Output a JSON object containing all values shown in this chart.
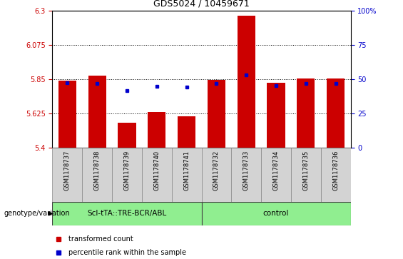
{
  "title": "GDS5024 / 10459671",
  "samples": [
    "GSM1178737",
    "GSM1178738",
    "GSM1178739",
    "GSM1178740",
    "GSM1178741",
    "GSM1178732",
    "GSM1178733",
    "GSM1178734",
    "GSM1178735",
    "GSM1178736"
  ],
  "red_values": [
    5.84,
    5.87,
    5.565,
    5.635,
    5.605,
    5.845,
    6.265,
    5.825,
    5.855,
    5.855
  ],
  "blue_values": [
    5.825,
    5.822,
    5.775,
    5.8,
    5.795,
    5.82,
    5.875,
    5.808,
    5.82,
    5.822
  ],
  "y_min": 5.4,
  "y_max": 6.3,
  "y_ticks_left": [
    5.4,
    5.625,
    5.85,
    6.075,
    6.3
  ],
  "y_ticks_right": [
    0,
    25,
    50,
    75,
    100
  ],
  "bar_color": "#cc0000",
  "dot_color": "#0000cc",
  "group1_color": "#90ee90",
  "group2_color": "#90ee90",
  "group1_label": "Scl-tTA::TRE-BCR/ABL",
  "group2_label": "control",
  "genotype_label": "genotype/variation",
  "legend1": "transformed count",
  "legend2": "percentile rank within the sample",
  "bar_base": 5.4,
  "bar_width": 0.6,
  "n_group1": 5,
  "n_group2": 5
}
